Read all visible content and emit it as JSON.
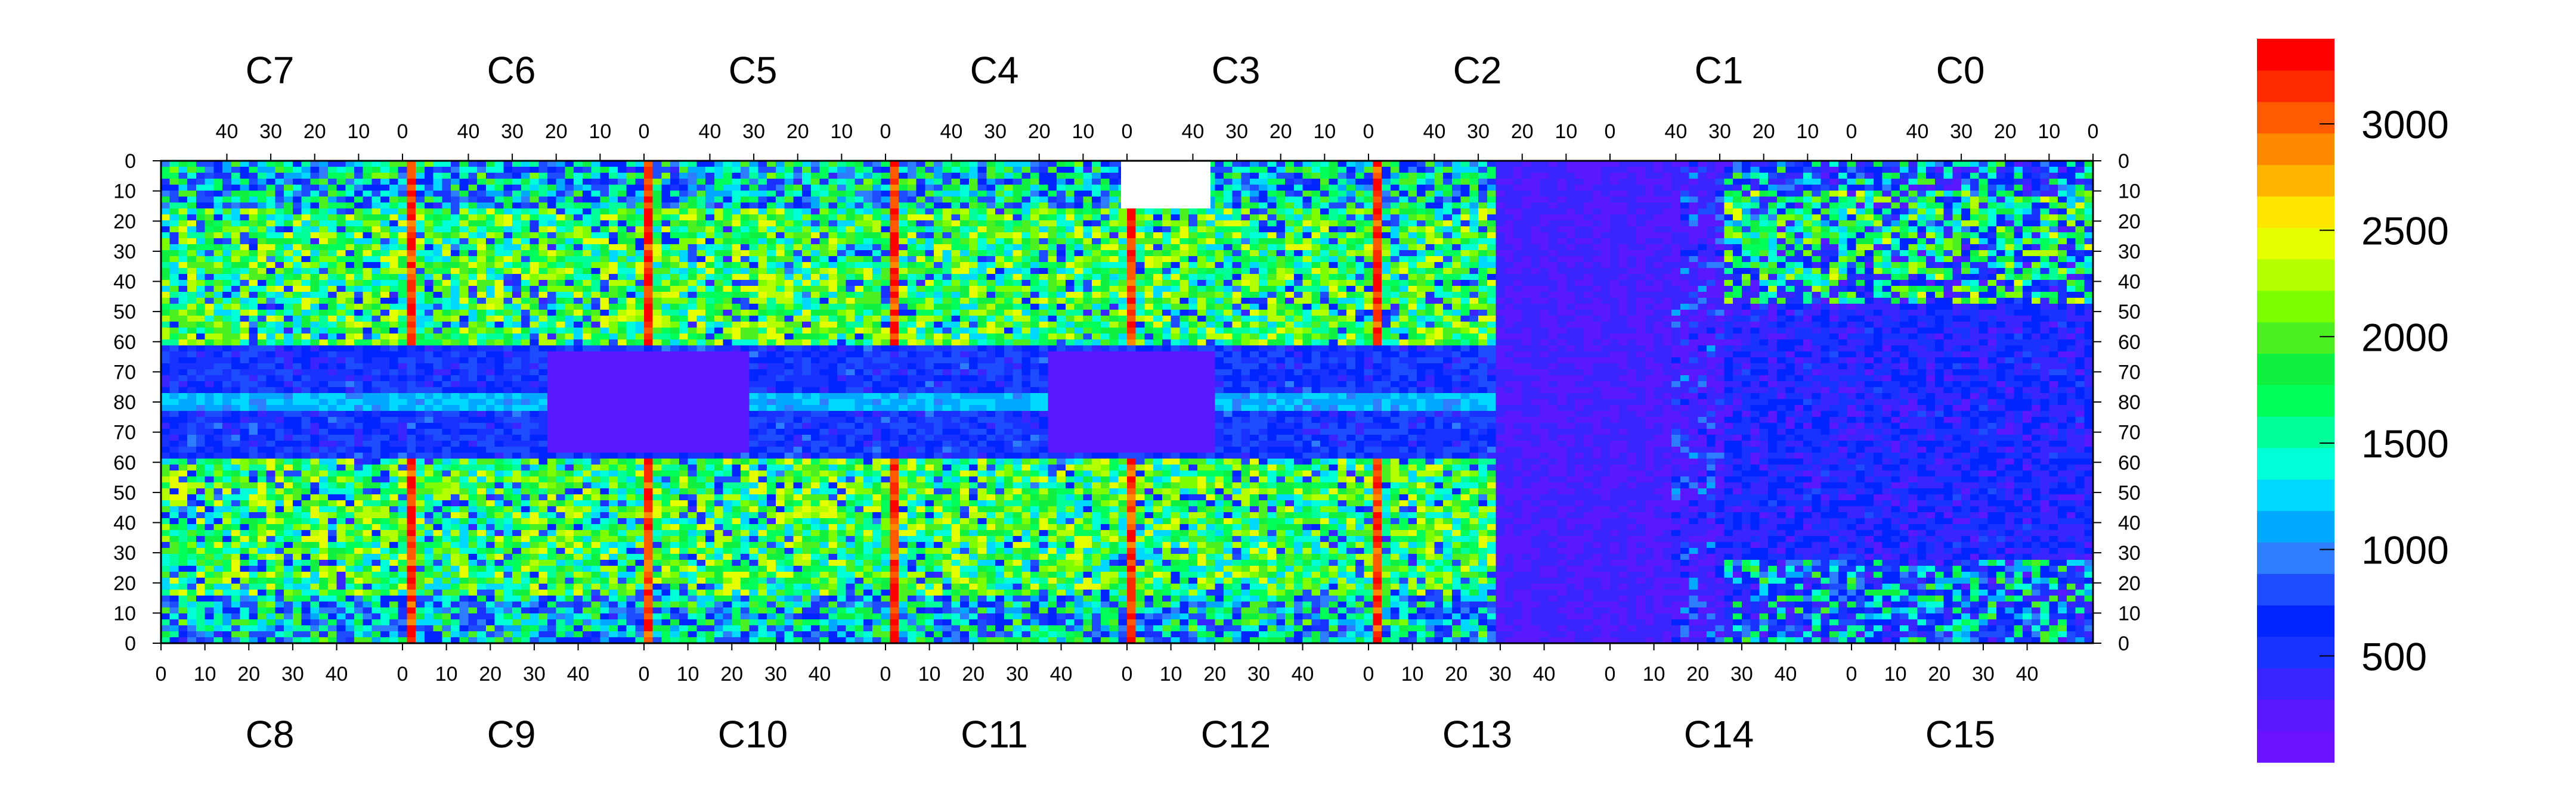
{
  "chart_data": {
    "type": "heatmap",
    "title": "",
    "xlabel": "",
    "ylabel": "",
    "top_chip_labels": [
      "C7",
      "C6",
      "C5",
      "C4",
      "C3",
      "C2",
      "C1",
      "C0"
    ],
    "bottom_chip_labels": [
      "C8",
      "C9",
      "C10",
      "C11",
      "C12",
      "C13",
      "C14",
      "C15"
    ],
    "top_x_tick_labels": [
      "40",
      "30",
      "20",
      "10",
      "0"
    ],
    "bottom_x_tick_labels": [
      "0",
      "10",
      "20",
      "30",
      "40"
    ],
    "y_tick_labels": [
      "0",
      "10",
      "20",
      "30",
      "40",
      "50",
      "60",
      "70",
      "80",
      "70",
      "60",
      "50",
      "40",
      "30",
      "20",
      "10",
      "0"
    ],
    "colorbar": {
      "ticks": [
        "3000",
        "2500",
        "2000",
        "1500",
        "1000",
        "500"
      ],
      "tick_values": [
        3000,
        2500,
        2000,
        1500,
        1000,
        500
      ],
      "range": [
        0,
        3400
      ],
      "colors": [
        "#6a11ff",
        "#5a18ff",
        "#3a25ff",
        "#1a32ff",
        "#0025ff",
        "#1e4dff",
        "#2e7dff",
        "#00a8ff",
        "#00d8ff",
        "#00ffd8",
        "#00ff9a",
        "#00ff5a",
        "#10f040",
        "#4cf020",
        "#7dff00",
        "#b4ff00",
        "#e6ff00",
        "#ffe600",
        "#ffb400",
        "#ff8a00",
        "#ff5a00",
        "#ff2a00",
        "#ff0000"
      ]
    },
    "grid": false,
    "legend": "colorbar-right"
  }
}
